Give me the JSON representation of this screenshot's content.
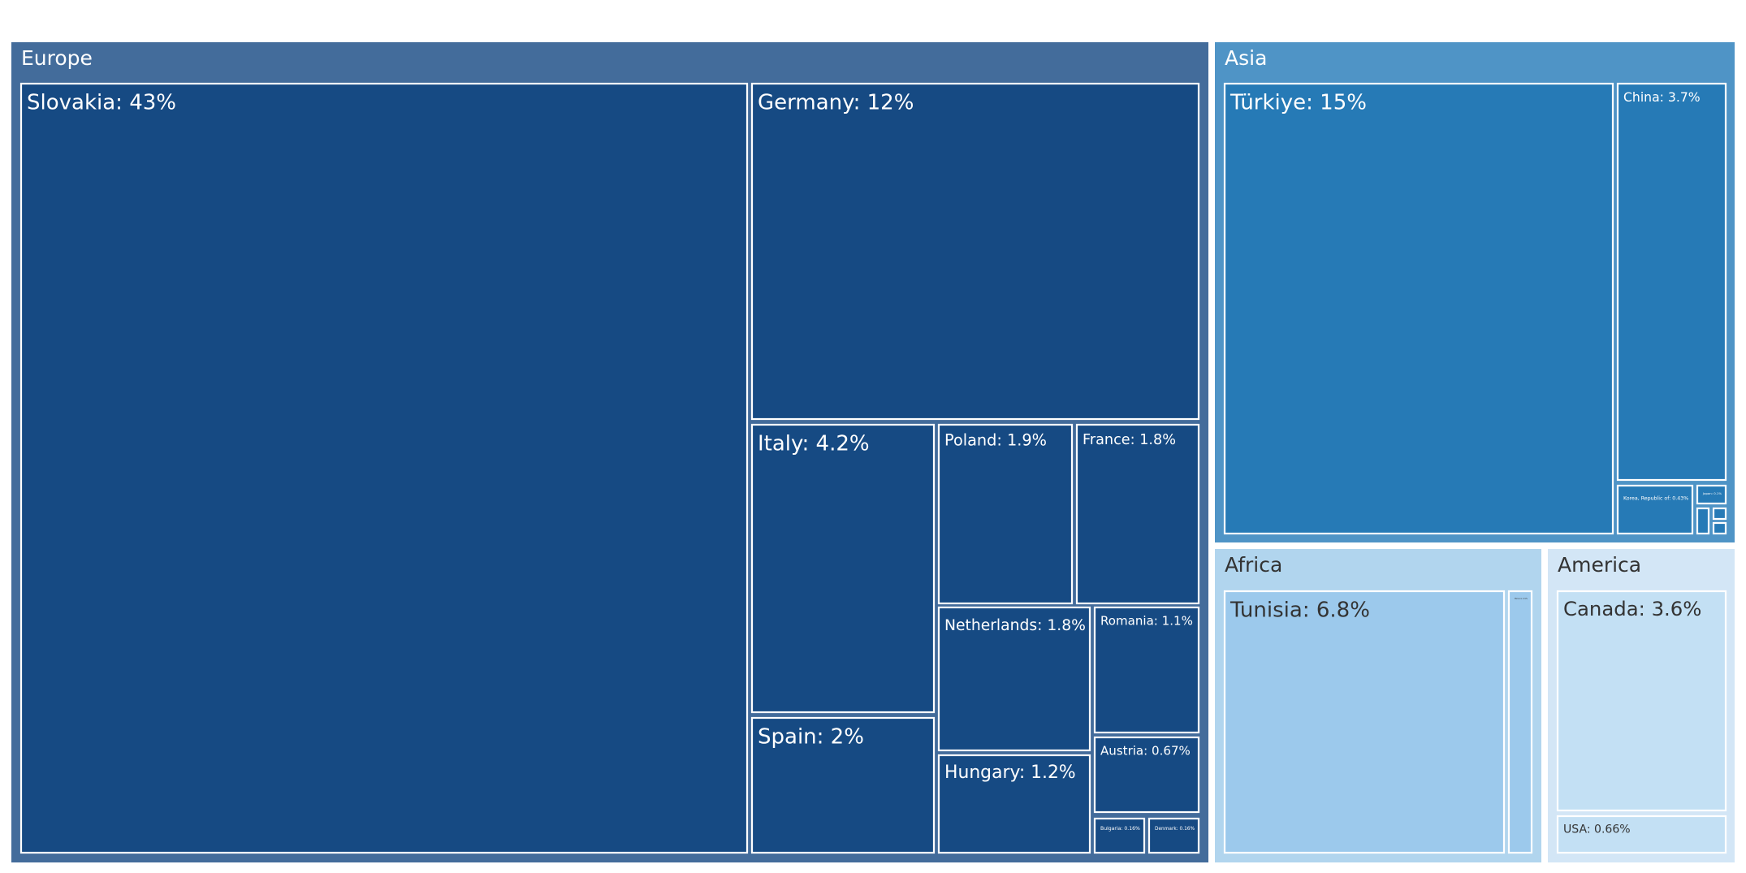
{
  "chart_data": {
    "type": "treemap",
    "title": "",
    "colors": {
      "Europe": {
        "group": "#436c9b",
        "tile": "#164a83",
        "text": "#ffffff"
      },
      "Asia": {
        "group": "#4f94c6",
        "tile": "#267ab6",
        "text": "#ffffff"
      },
      "Africa": {
        "group": "#b1d5ee",
        "tile": "#9cc9ec",
        "text": "#333333"
      },
      "America": {
        "group": "#d3e6f6",
        "tile": "#c3e0f4",
        "text": "#333333"
      },
      "border": "#ffffff"
    },
    "groups": [
      {
        "name": "Europe",
        "items": [
          {
            "name": "Slovakia",
            "label": "Slovakia: 43%",
            "value": 43
          },
          {
            "name": "Germany",
            "label": "Germany: 12%",
            "value": 12
          },
          {
            "name": "Italy",
            "label": "Italy: 4.2%",
            "value": 4.2
          },
          {
            "name": "Spain",
            "label": "Spain: 2%",
            "value": 2
          },
          {
            "name": "Poland",
            "label": "Poland: 1.9%",
            "value": 1.9
          },
          {
            "name": "France",
            "label": "France: 1.8%",
            "value": 1.8
          },
          {
            "name": "Netherlands",
            "label": "Netherlands: 1.8%",
            "value": 1.8
          },
          {
            "name": "Hungary",
            "label": "Hungary: 1.2%",
            "value": 1.2
          },
          {
            "name": "Romania",
            "label": "Romania: 1.1%",
            "value": 1.1
          },
          {
            "name": "Austria",
            "label": "Austria: 0.67%",
            "value": 0.67
          },
          {
            "name": "Bulgaria",
            "label": "Bulgaria: 0.16%",
            "value": 0.16
          },
          {
            "name": "Denmark",
            "label": "Denmark: 0.16%",
            "value": 0.16
          }
        ]
      },
      {
        "name": "Asia",
        "items": [
          {
            "name": "Türkiye",
            "label": "Türkiye: 15%",
            "value": 15
          },
          {
            "name": "China",
            "label": "China: 3.7%",
            "value": 3.7
          },
          {
            "name": "Korea",
            "label": "Korea, Republic of: 0.43%",
            "value": 0.43
          },
          {
            "name": "Japan",
            "label": "Japan: 0.1%",
            "value": 0.1
          },
          {
            "name": "Asia-small-1",
            "label": "",
            "value": 0.05
          },
          {
            "name": "Asia-small-2",
            "label": "",
            "value": 0.03
          },
          {
            "name": "Asia-small-3",
            "label": "",
            "value": 0.03
          }
        ]
      },
      {
        "name": "Africa",
        "items": [
          {
            "name": "Tunisia",
            "label": "Tunisia: 6.8%",
            "value": 6.8
          },
          {
            "name": "Morocco",
            "label": "Morocco: 0.5%",
            "value": 0.5
          }
        ]
      },
      {
        "name": "America",
        "items": [
          {
            "name": "Canada",
            "label": "Canada: 3.6%",
            "value": 3.6
          },
          {
            "name": "USA",
            "label": "USA: 0.66%",
            "value": 0.66
          }
        ]
      }
    ]
  }
}
